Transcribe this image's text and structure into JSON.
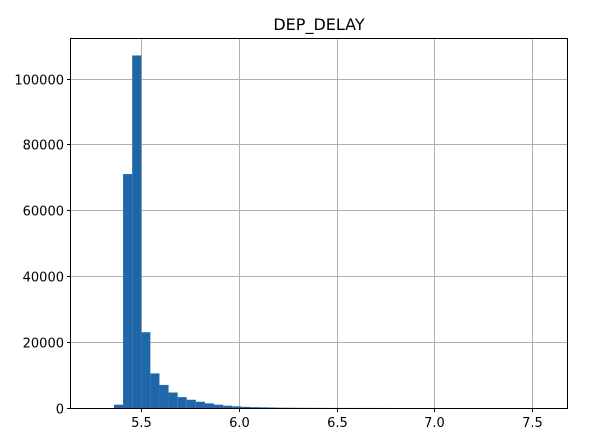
{
  "chart_data": {
    "type": "bar",
    "title": "DEP_DELAY",
    "xlabel": "",
    "ylabel": "",
    "xlim": [
      5.14,
      7.68
    ],
    "ylim": [
      0,
      112000
    ],
    "grid": true,
    "bar_color": "#1f67a8",
    "grid_color": "#b0b0b0",
    "xticks": [
      5.5,
      6.0,
      6.5,
      7.0,
      7.5
    ],
    "xtick_labels": [
      "5.5",
      "6.0",
      "6.5",
      "7.0",
      "7.5"
    ],
    "yticks": [
      0,
      20000,
      40000,
      60000,
      80000,
      100000
    ],
    "ytick_labels": [
      "0",
      "20000",
      "40000",
      "60000",
      "80000",
      "100000"
    ],
    "bin_start": 5.36,
    "bin_width": 0.0466,
    "values": [
      1000,
      71000,
      107000,
      23000,
      10500,
      7000,
      4700,
      3300,
      2500,
      1900,
      1400,
      1000,
      700,
      500,
      350,
      250,
      200,
      150,
      100,
      80,
      60,
      50,
      40,
      30,
      25,
      20,
      18,
      16,
      14,
      12,
      10,
      10,
      8,
      8,
      6,
      6,
      5,
      5,
      4,
      4,
      3,
      3,
      3,
      2,
      2,
      2,
      2,
      1,
      1,
      1
    ]
  }
}
